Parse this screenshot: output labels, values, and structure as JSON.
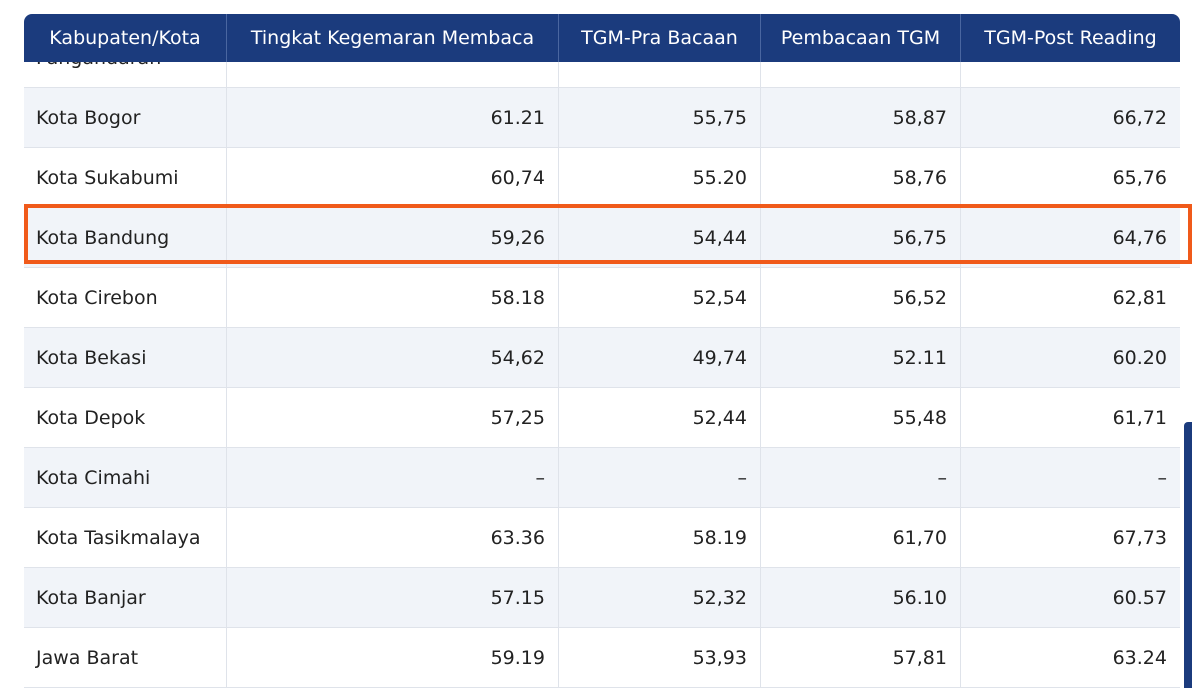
{
  "table": {
    "header": [
      "Kabupaten/Kota",
      "Tingkat Kegemaran Membaca",
      "TGM-Pra Bacaan",
      "Pembacaan TGM",
      "TGM-Post Reading"
    ],
    "partial_row": "Pangandaran",
    "rows": [
      [
        "Kota Bogor",
        "61.21",
        "55,75",
        "58,87",
        "66,72"
      ],
      [
        "Kota Sukabumi",
        "60,74",
        "55.20",
        "58,76",
        "65,76"
      ],
      [
        "Kota Bandung",
        "59,26",
        "54,44",
        "56,75",
        "64,76"
      ],
      [
        "Kota Cirebon",
        "58.18",
        "52,54",
        "56,52",
        "62,81"
      ],
      [
        "Kota Bekasi",
        "54,62",
        "49,74",
        "52.11",
        "60.20"
      ],
      [
        "Kota Depok",
        "57,25",
        "52,44",
        "55,48",
        "61,71"
      ],
      [
        "Kota Cimahi",
        "–",
        "–",
        "–",
        "–"
      ],
      [
        "Kota Tasikmalaya",
        "63.36",
        "58.19",
        "61,70",
        "67,73"
      ],
      [
        "Kota Banjar",
        "57.15",
        "52,32",
        "56.10",
        "60.57"
      ],
      [
        "Jawa Barat",
        "59.19",
        "53,93",
        "57,81",
        "63.24"
      ]
    ]
  }
}
